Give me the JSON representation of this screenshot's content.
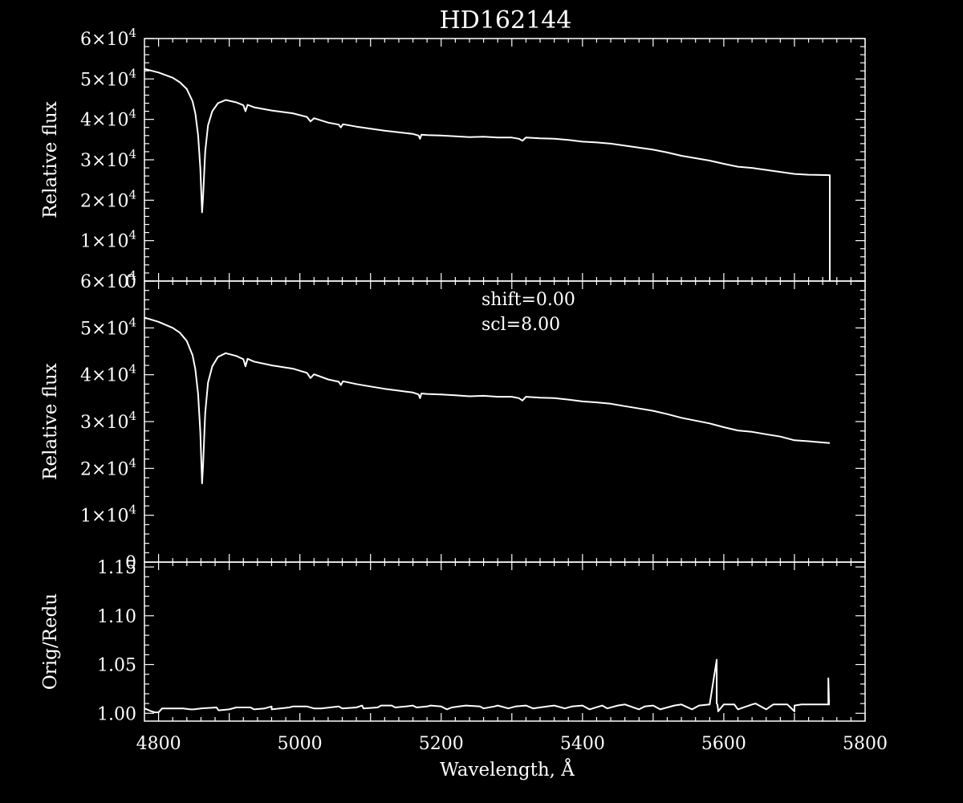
{
  "colors": {
    "background": "#000000",
    "foreground": "#ffffff"
  },
  "chart_data": [
    {
      "type": "line",
      "panel": "top",
      "title": "HD162144",
      "xlabel": "",
      "ylabel": "Relative flux",
      "xlim": [
        4780,
        5800
      ],
      "ylim": [
        0,
        60000
      ],
      "xticks_major": [
        4800,
        5000,
        5200,
        5400,
        5600,
        5800
      ],
      "yticks": [
        {
          "value": 0,
          "mant": "0",
          "exp": ""
        },
        {
          "value": 10000,
          "mant": "1×10",
          "exp": "4"
        },
        {
          "value": 20000,
          "mant": "2×10",
          "exp": "4"
        },
        {
          "value": 30000,
          "mant": "3×10",
          "exp": "4"
        },
        {
          "value": 40000,
          "mant": "4×10",
          "exp": "4"
        },
        {
          "value": 50000,
          "mant": "5×10",
          "exp": "4"
        },
        {
          "value": 60000,
          "mant": "6×10",
          "exp": "4"
        }
      ],
      "series": [
        {
          "x": [
            4780,
            4800,
            4820,
            4830,
            4840,
            4848,
            4852,
            4856,
            4859,
            4861.5,
            4863,
            4866,
            4870,
            4876,
            4884,
            4895,
            4910,
            4920,
            4923,
            4926,
            4935,
            4960,
            4990,
            5010,
            5015,
            5020,
            5040,
            5055,
            5058,
            5061,
            5080,
            5100,
            5120,
            5140,
            5160,
            5168,
            5170,
            5172,
            5180,
            5200,
            5220,
            5240,
            5260,
            5280,
            5300,
            5310,
            5315,
            5320,
            5340,
            5360,
            5380,
            5400,
            5420,
            5440,
            5460,
            5480,
            5500,
            5520,
            5540,
            5560,
            5580,
            5600,
            5620,
            5640,
            5660,
            5680,
            5700,
            5720,
            5749,
            5750,
            5750
          ],
          "y": [
            52500,
            51600,
            50300,
            49200,
            47500,
            44500,
            41500,
            36000,
            28000,
            17000,
            21000,
            32000,
            38500,
            42000,
            44000,
            44800,
            44200,
            43500,
            42000,
            43600,
            43000,
            42200,
            41500,
            40600,
            39500,
            40300,
            39200,
            38700,
            38000,
            38800,
            38200,
            37700,
            37200,
            36800,
            36400,
            36000,
            35200,
            36200,
            36100,
            36000,
            35800,
            35600,
            35700,
            35500,
            35500,
            35200,
            34700,
            35500,
            35300,
            35200,
            34900,
            34500,
            34300,
            34000,
            33500,
            33000,
            32500,
            31800,
            31000,
            30400,
            29800,
            29000,
            28300,
            28000,
            27500,
            27000,
            26500,
            26300,
            26200,
            26200,
            0
          ]
        }
      ]
    },
    {
      "type": "line",
      "panel": "middle",
      "xlabel": "",
      "ylabel": "Relative flux",
      "xlim": [
        4780,
        5800
      ],
      "ylim": [
        0,
        60000
      ],
      "annotations": [
        "shift=0.00",
        "scl=8.00"
      ],
      "yticks": [
        {
          "value": 0,
          "mant": "0",
          "exp": ""
        },
        {
          "value": 10000,
          "mant": "1×10",
          "exp": "4"
        },
        {
          "value": 20000,
          "mant": "2×10",
          "exp": "4"
        },
        {
          "value": 30000,
          "mant": "3×10",
          "exp": "4"
        },
        {
          "value": 40000,
          "mant": "4×10",
          "exp": "4"
        },
        {
          "value": 50000,
          "mant": "5×10",
          "exp": "4"
        },
        {
          "value": 60000,
          "mant": "6×10",
          "exp": "4"
        }
      ],
      "series": [
        {
          "x": [
            4780,
            4800,
            4820,
            4830,
            4840,
            4848,
            4852,
            4856,
            4859,
            4861.5,
            4863,
            4866,
            4870,
            4876,
            4884,
            4895,
            4910,
            4920,
            4923,
            4926,
            4935,
            4960,
            4990,
            5010,
            5015,
            5020,
            5040,
            5055,
            5058,
            5061,
            5080,
            5100,
            5120,
            5140,
            5160,
            5168,
            5170,
            5172,
            5180,
            5200,
            5220,
            5240,
            5260,
            5280,
            5300,
            5310,
            5315,
            5320,
            5340,
            5360,
            5380,
            5400,
            5420,
            5440,
            5460,
            5480,
            5500,
            5520,
            5540,
            5560,
            5580,
            5600,
            5620,
            5640,
            5660,
            5680,
            5700,
            5720,
            5750
          ],
          "y": [
            52200,
            51300,
            50000,
            49000,
            47200,
            44200,
            41200,
            35800,
            27800,
            16800,
            20800,
            31800,
            38300,
            41800,
            43800,
            44600,
            44000,
            43300,
            41800,
            43400,
            42800,
            42000,
            41300,
            40400,
            39300,
            40100,
            39000,
            38500,
            37800,
            38600,
            38000,
            37500,
            37000,
            36600,
            36200,
            35800,
            35000,
            36000,
            35900,
            35800,
            35600,
            35400,
            35500,
            35300,
            35300,
            35000,
            34500,
            35300,
            35100,
            35000,
            34700,
            34300,
            34100,
            33800,
            33300,
            32800,
            32300,
            31600,
            30800,
            30200,
            29600,
            28800,
            28100,
            27800,
            27300,
            26800,
            26000,
            25800,
            25400
          ]
        }
      ]
    },
    {
      "type": "line",
      "panel": "bottom",
      "xlabel": "Wavelength, Å",
      "ylabel": "Orig/Redu",
      "xlim": [
        4780,
        5800
      ],
      "ylim": [
        0.992,
        1.155
      ],
      "xticks": [
        4800,
        5000,
        5200,
        5400,
        5600,
        5800
      ],
      "yticks": [
        {
          "value": 1.0,
          "label": "1.00"
        },
        {
          "value": 1.05,
          "label": "1.05"
        },
        {
          "value": 1.1,
          "label": "1.10"
        },
        {
          "value": 1.15,
          "label": "1.15"
        }
      ],
      "series": [
        {
          "x": [
            4780,
            4790,
            4795,
            4800,
            4805,
            4835,
            4845,
            4850,
            4860,
            4882,
            4885,
            4900,
            4910,
            4930,
            4935,
            4950,
            4960,
            4960,
            4985,
            4990,
            5010,
            5020,
            5030,
            5055,
            5060,
            5080,
            5088,
            5090,
            5110,
            5115,
            5130,
            5135,
            5150,
            5160,
            5165,
            5180,
            5185,
            5200,
            5208,
            5215,
            5225,
            5235,
            5255,
            5260,
            5275,
            5280,
            5295,
            5305,
            5320,
            5330,
            5350,
            5360,
            5375,
            5385,
            5400,
            5410,
            5428,
            5435,
            5450,
            5460,
            5480,
            5488,
            5500,
            5510,
            5530,
            5540,
            5555,
            5565,
            5580,
            5590,
            5590,
            5591,
            5592,
            5592,
            5600,
            5615,
            5620,
            5640,
            5645,
            5660,
            5670,
            5690,
            5700,
            5700,
            5710,
            5730,
            5748,
            5748,
            5749,
            5750
          ],
          "y": [
            1.005,
            1.002,
            1.001,
            1.001,
            1.005,
            1.005,
            1.004,
            1.004,
            1.005,
            1.006,
            1.003,
            1.004,
            1.006,
            1.006,
            1.004,
            1.005,
            1.007,
            1.004,
            1.006,
            1.007,
            1.007,
            1.005,
            1.005,
            1.007,
            1.005,
            1.006,
            1.008,
            1.005,
            1.006,
            1.008,
            1.008,
            1.006,
            1.007,
            1.008,
            1.006,
            1.007,
            1.008,
            1.007,
            1.004,
            1.006,
            1.007,
            1.008,
            1.007,
            1.005,
            1.007,
            1.008,
            1.005,
            1.007,
            1.008,
            1.005,
            1.007,
            1.008,
            1.005,
            1.007,
            1.008,
            1.004,
            1.008,
            1.005,
            1.008,
            1.009,
            1.004,
            1.007,
            1.008,
            1.004,
            1.008,
            1.009,
            1.004,
            1.008,
            1.009,
            1.055,
            1.01,
            1.009,
            1.003,
            1.002,
            1.009,
            1.009,
            1.004,
            1.009,
            1.01,
            1.004,
            1.009,
            1.009,
            1.002,
            1.008,
            1.009,
            1.009,
            1.009,
            1.036,
            1.009,
            1.009
          ]
        }
      ]
    }
  ]
}
